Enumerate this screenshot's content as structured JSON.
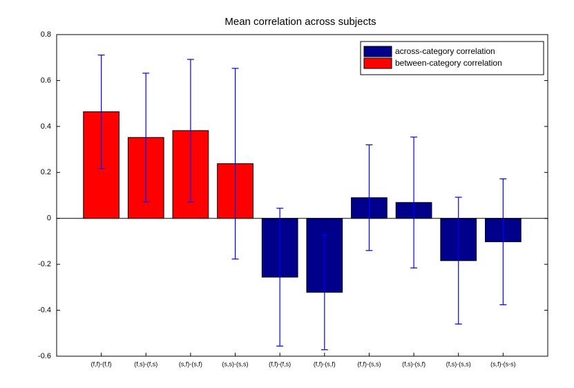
{
  "chart_data": {
    "type": "bar",
    "title": "Mean correlation across subjects",
    "categories": [
      "(f,f)-(f,f)",
      "(f,s)-(f,s)",
      "(s,f)-(s,f)",
      "(s,s)-(s,s)",
      "(f,f)-(f,s)",
      "(f,f)-(s,f)",
      "(f,f)-(s,s)",
      "(f,s)-(s,f)",
      "(f,s)-(s,s)",
      "(s,f)-(s-s)"
    ],
    "series": [
      {
        "name": "across-category correlation",
        "color": "#00008b",
        "values": [
          null,
          null,
          null,
          null,
          -0.256,
          -0.322,
          0.09,
          0.069,
          -0.184,
          -0.102
        ],
        "errors": [
          null,
          null,
          null,
          null,
          0.3,
          0.25,
          0.23,
          0.285,
          0.276,
          0.274
        ]
      },
      {
        "name": "between-category correlation",
        "color": "#ff0000",
        "values": [
          0.464,
          0.352,
          0.382,
          0.238,
          null,
          null,
          null,
          null,
          null,
          null
        ],
        "errors": [
          0.247,
          0.28,
          0.31,
          0.415,
          null,
          null,
          null,
          null,
          null,
          null
        ]
      }
    ],
    "error_color": "#0000ff",
    "ylim": [
      -0.6,
      0.8
    ],
    "yticks": [
      -0.6,
      -0.4,
      -0.2,
      0,
      0.2,
      0.4,
      0.6,
      0.8
    ],
    "legend": "upper right"
  }
}
